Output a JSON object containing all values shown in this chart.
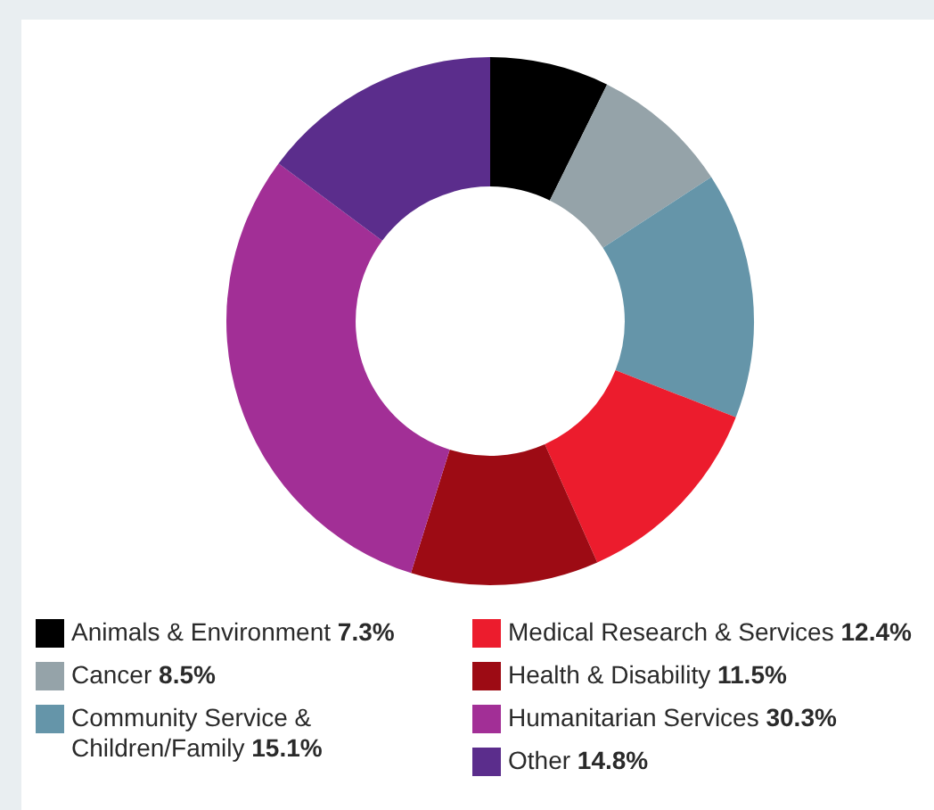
{
  "chart_data": {
    "type": "donut",
    "categories": [
      "Animals & Environment",
      "Cancer",
      "Community Service & Children/Family",
      "Medical Research & Services",
      "Health & Disability",
      "Humanitarian Services",
      "Other"
    ],
    "values": [
      7.3,
      8.5,
      15.1,
      12.4,
      11.5,
      30.3,
      14.8
    ],
    "value_labels": [
      "7.3%",
      "8.5%",
      "15.1%",
      "12.4%",
      "11.5%",
      "30.3%",
      "14.8%"
    ],
    "colors": [
      "#000000",
      "#95a3a9",
      "#6595a9",
      "#ec1c2d",
      "#9d0b14",
      "#a22f96",
      "#5b2d8c"
    ],
    "legend": "bottom"
  }
}
